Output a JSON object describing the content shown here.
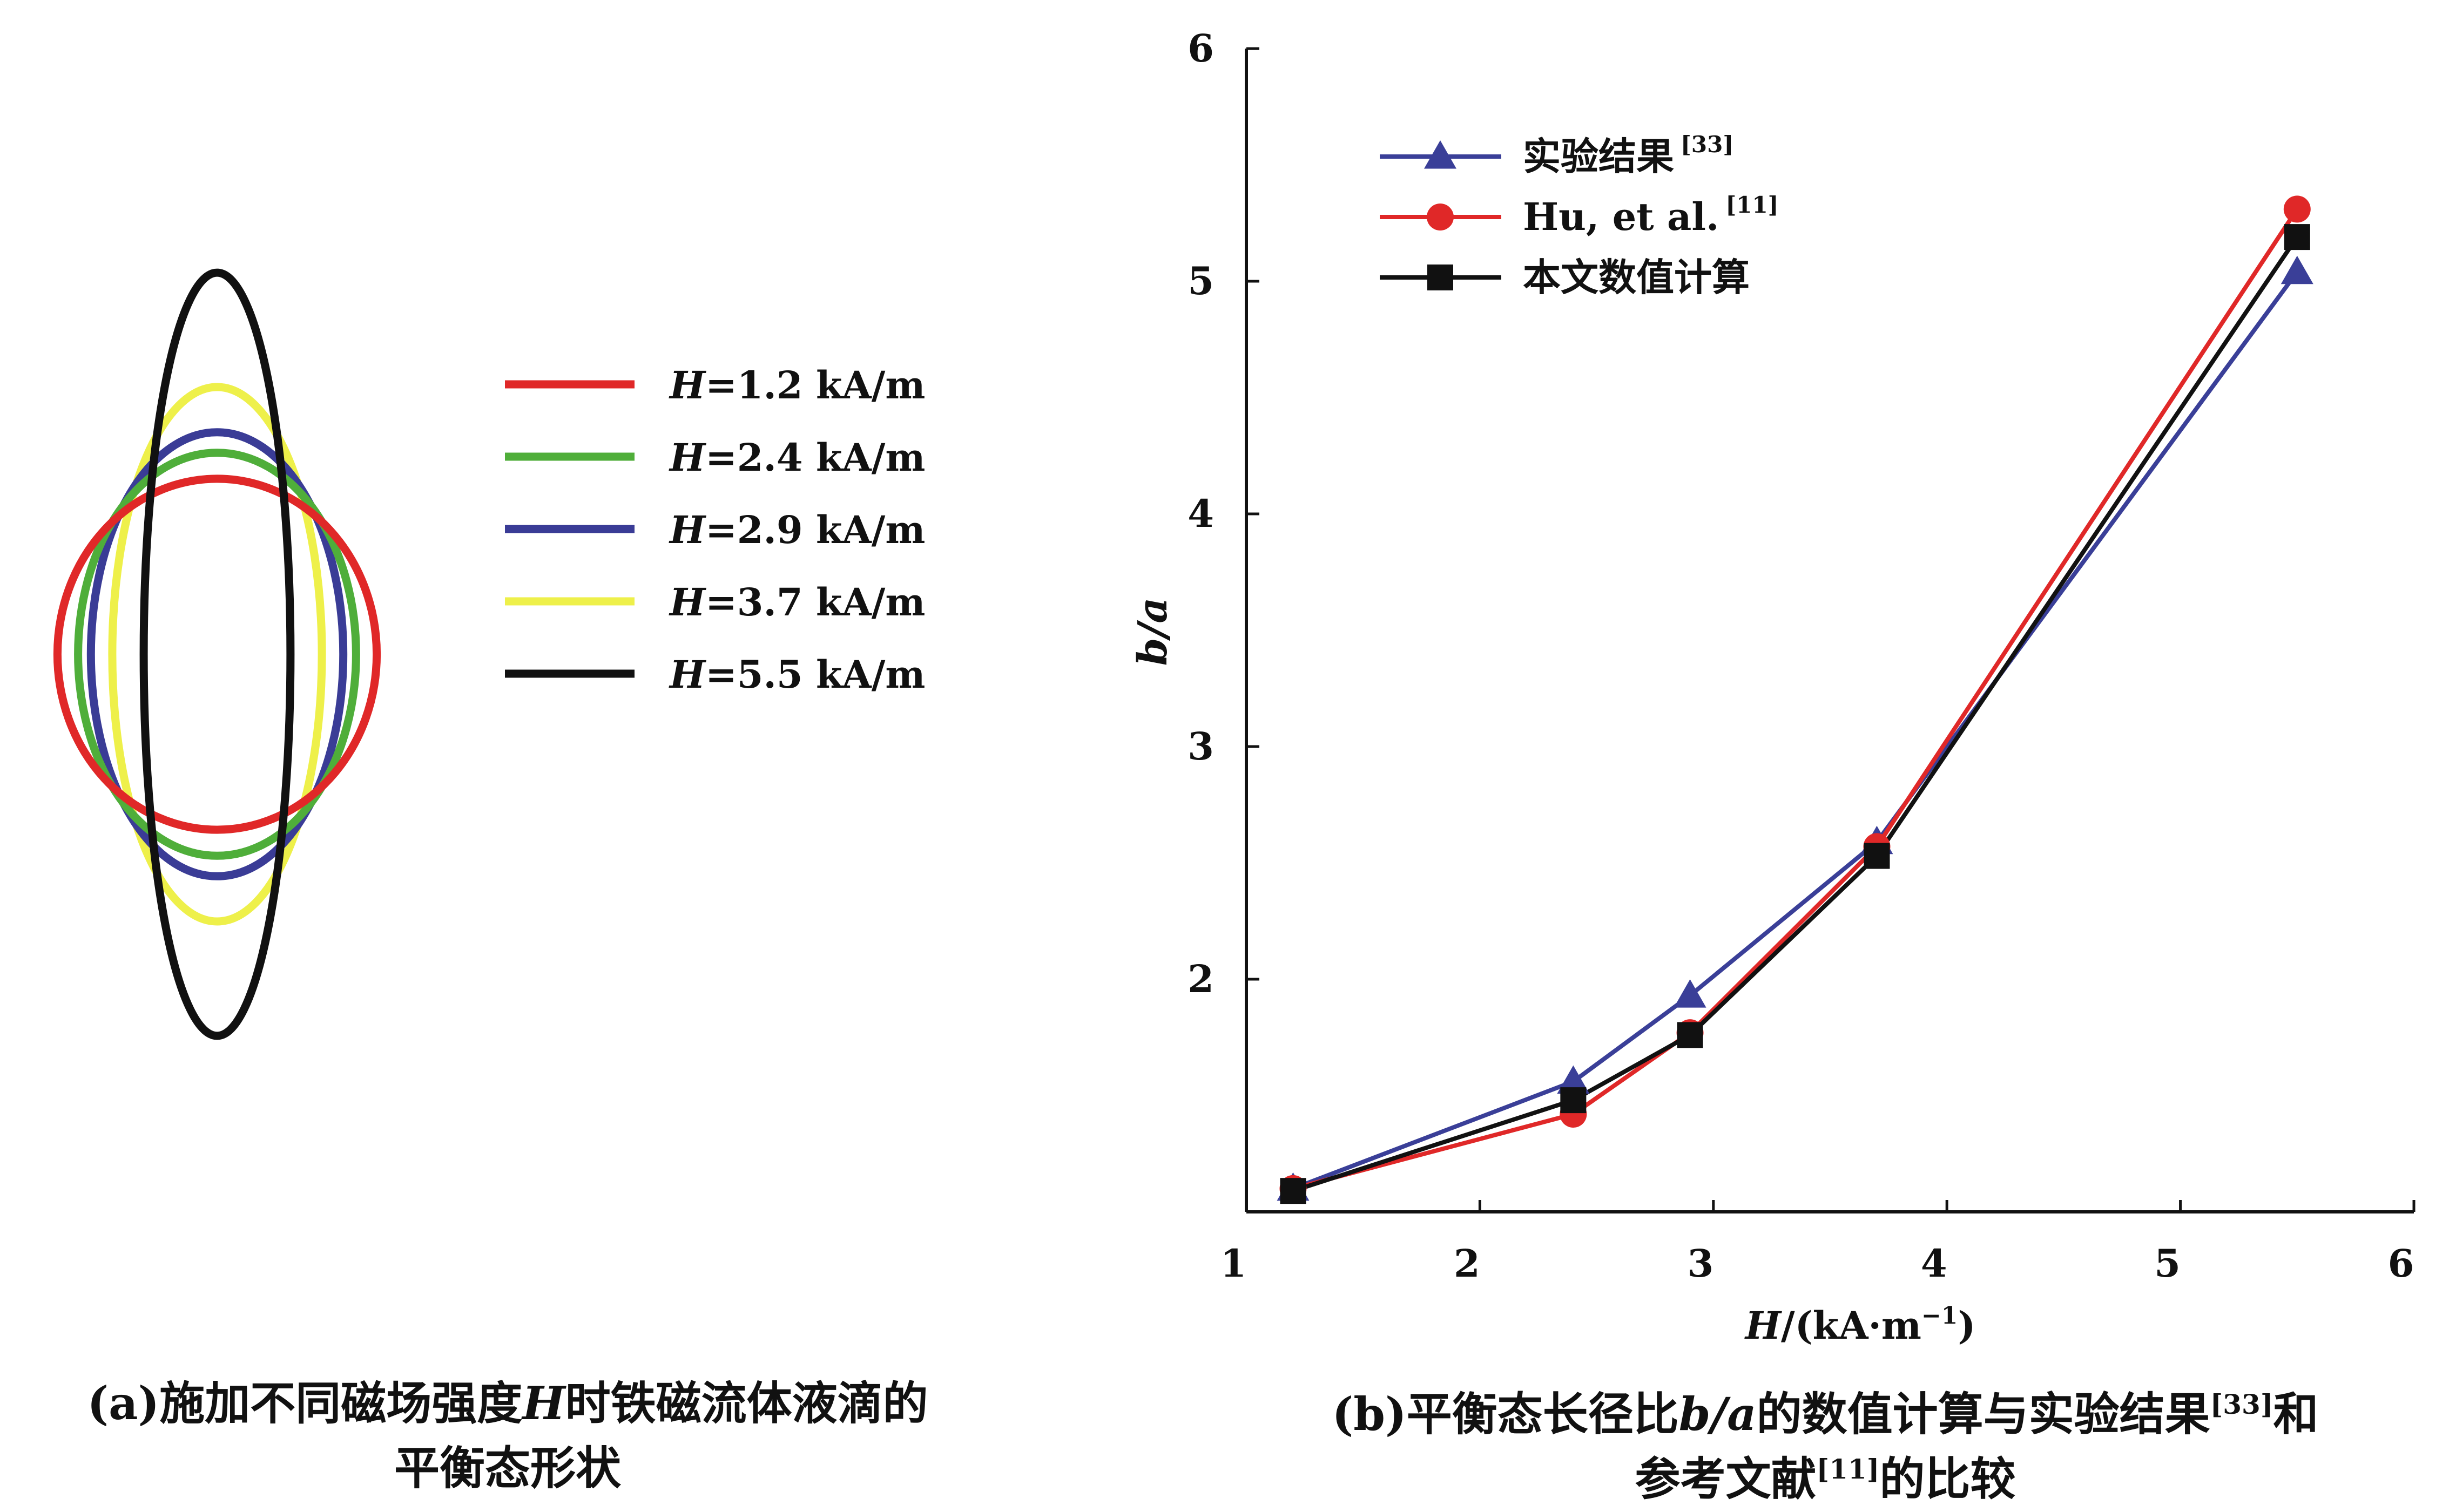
{
  "chart_data": [
    {
      "type": "line",
      "caption": {
        "label": "(a)",
        "text_part1": "施加不同磁场强度",
        "text_var": "H",
        "text_part2": "时铁磁流体液滴的",
        "text_line2": "平衡态形状"
      },
      "series": [
        {
          "name": "H=1.2 kA/m",
          "name_var": "H",
          "name_rest": "=1.2 kA/m",
          "color": "#e02828",
          "b_over_a": 1.1
        },
        {
          "name": "H=2.4 kA/m",
          "name_var": "H",
          "name_rest": "=2.4 kA/m",
          "color": "#4fae3a",
          "b_over_a": 1.45
        },
        {
          "name": "H=2.9 kA/m",
          "name_var": "H",
          "name_rest": "=2.9 kA/m",
          "color": "#3a3c96",
          "b_over_a": 1.76
        },
        {
          "name": "H=3.7 kA/m",
          "name_var": "H",
          "name_rest": "=3.7 kA/m",
          "color": "#eef04a",
          "b_over_a": 2.55
        },
        {
          "name": "H=5.5 kA/m",
          "name_var": "H",
          "name_rest": "=5.5 kA/m",
          "color": "#111111",
          "b_over_a": 5.2
        }
      ]
    },
    {
      "type": "line",
      "xlabel_var": "H",
      "xlabel_rest": "/(kA·m",
      "xlabel_sup": "−1",
      "xlabel_tail": ")",
      "ylabel": "b/a",
      "xlim": [
        1,
        6
      ],
      "ylim": [
        1,
        6
      ],
      "xticks": [
        "1",
        "2",
        "3",
        "4",
        "5",
        "6"
      ],
      "yticks": [
        "2",
        "3",
        "4",
        "5",
        "6"
      ],
      "grid": false,
      "legend_position": "top-left",
      "x": [
        1.2,
        2.4,
        2.9,
        3.7,
        5.5
      ],
      "series": [
        {
          "name": "实验结果",
          "ref": "[33]",
          "color": "#3a3f98",
          "marker": "triangle",
          "values": [
            1.1,
            1.56,
            1.93,
            2.59,
            5.04
          ]
        },
        {
          "name": "Hu, et al.",
          "ref": "[11]",
          "color": "#e02828",
          "marker": "circle",
          "values": [
            1.1,
            1.42,
            1.77,
            2.57,
            5.31
          ]
        },
        {
          "name": "本文数值计算",
          "ref": "",
          "color": "#111111",
          "marker": "square",
          "values": [
            1.09,
            1.48,
            1.76,
            2.53,
            5.19
          ]
        }
      ],
      "caption": {
        "label": "(b)",
        "text_part1": "平衡态长径比",
        "text_var": "b/a",
        "text_part2": "的数值计算与实验结果",
        "ref1": "[33]",
        "text_part3": "和",
        "text_line2": "参考文献",
        "ref2": "[11]",
        "text_line2_end": "的比较"
      }
    }
  ]
}
